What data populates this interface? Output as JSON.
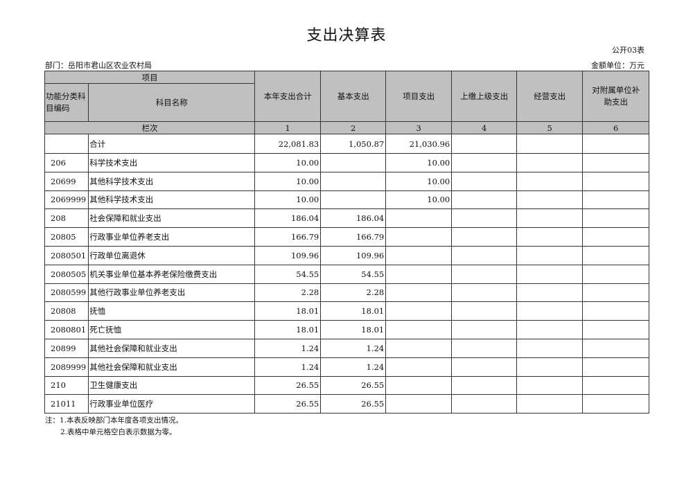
{
  "title": "支出决算表",
  "form_code": "公开03表",
  "department": "部门：岳阳市君山区农业农村局",
  "unit": "金额单位：万元",
  "header": {
    "item": "项目",
    "code": "功能分类科目编码",
    "name": "科目名称",
    "columns": [
      "本年支出合计",
      "基本支出",
      "项目支出",
      "上缴上级支出",
      "经营支出",
      "对附属单位补助支出"
    ],
    "row_index_label": "栏次",
    "column_numbers": [
      "1",
      "2",
      "3",
      "4",
      "5",
      "6"
    ]
  },
  "rows": [
    {
      "code": "",
      "name": "合计",
      "values": [
        "22,081.83",
        "1,050.87",
        "21,030.96",
        "",
        "",
        ""
      ]
    },
    {
      "code": "206",
      "name": "科学技术支出",
      "values": [
        "10.00",
        "",
        "10.00",
        "",
        "",
        ""
      ]
    },
    {
      "code": "20699",
      "name": "其他科学技术支出",
      "values": [
        "10.00",
        "",
        "10.00",
        "",
        "",
        ""
      ]
    },
    {
      "code": "2069999",
      "name": "其他科学技术支出",
      "values": [
        "10.00",
        "",
        "10.00",
        "",
        "",
        ""
      ]
    },
    {
      "code": "208",
      "name": "社会保障和就业支出",
      "values": [
        "186.04",
        "186.04",
        "",
        "",
        "",
        ""
      ]
    },
    {
      "code": "20805",
      "name": "行政事业单位养老支出",
      "values": [
        "166.79",
        "166.79",
        "",
        "",
        "",
        ""
      ]
    },
    {
      "code": "2080501",
      "name": "行政单位离退休",
      "values": [
        "109.96",
        "109.96",
        "",
        "",
        "",
        ""
      ]
    },
    {
      "code": "2080505",
      "name": "机关事业单位基本养老保险缴费支出",
      "values": [
        "54.55",
        "54.55",
        "",
        "",
        "",
        ""
      ]
    },
    {
      "code": "2080599",
      "name": "其他行政事业单位养老支出",
      "values": [
        "2.28",
        "2.28",
        "",
        "",
        "",
        ""
      ]
    },
    {
      "code": "20808",
      "name": "抚恤",
      "values": [
        "18.01",
        "18.01",
        "",
        "",
        "",
        ""
      ]
    },
    {
      "code": "2080801",
      "name": "死亡抚恤",
      "values": [
        "18.01",
        "18.01",
        "",
        "",
        "",
        ""
      ]
    },
    {
      "code": "20899",
      "name": "其他社会保障和就业支出",
      "values": [
        "1.24",
        "1.24",
        "",
        "",
        "",
        ""
      ]
    },
    {
      "code": "2089999",
      "name": "其他社会保障和就业支出",
      "values": [
        "1.24",
        "1.24",
        "",
        "",
        "",
        ""
      ]
    },
    {
      "code": "210",
      "name": "卫生健康支出",
      "values": [
        "26.55",
        "26.55",
        "",
        "",
        "",
        ""
      ]
    },
    {
      "code": "21011",
      "name": "行政事业单位医疗",
      "values": [
        "26.55",
        "26.55",
        "",
        "",
        "",
        ""
      ]
    }
  ],
  "notes": [
    "注：1.本表反映部门本年度各项支出情况。",
    "2.表格中单元格空白表示数据为零。"
  ]
}
